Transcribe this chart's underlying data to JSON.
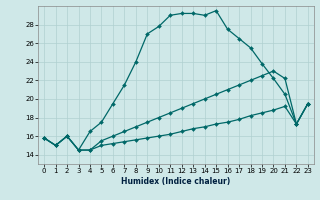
{
  "xlabel": "Humidex (Indice chaleur)",
  "xlim": [
    -0.5,
    23.5
  ],
  "ylim": [
    13.0,
    30.0
  ],
  "yticks": [
    14,
    16,
    18,
    20,
    22,
    24,
    26,
    28
  ],
  "xticks": [
    0,
    1,
    2,
    3,
    4,
    5,
    6,
    7,
    8,
    9,
    10,
    11,
    12,
    13,
    14,
    15,
    16,
    17,
    18,
    19,
    20,
    21,
    22,
    23
  ],
  "bg_color": "#cfe8e8",
  "grid_color": "#b0d0d0",
  "line_color": "#006868",
  "line1_x": [
    0,
    1,
    2,
    3,
    4,
    5,
    6,
    7,
    8,
    9,
    10,
    11,
    12,
    13,
    14,
    15,
    16,
    17,
    18,
    19,
    20,
    21,
    22,
    23
  ],
  "line1_y": [
    15.8,
    15.0,
    16.0,
    14.5,
    16.5,
    17.5,
    19.5,
    21.5,
    24.0,
    27.0,
    27.8,
    29.0,
    29.2,
    29.2,
    29.0,
    29.5,
    27.5,
    26.5,
    25.5,
    23.8,
    22.2,
    20.5,
    17.3,
    19.5
  ],
  "line2_x": [
    0,
    1,
    2,
    3,
    4,
    5,
    6,
    7,
    8,
    9,
    10,
    11,
    12,
    13,
    14,
    15,
    16,
    17,
    18,
    19,
    20,
    21,
    22,
    23
  ],
  "line2_y": [
    15.8,
    15.0,
    16.0,
    14.5,
    14.5,
    15.5,
    16.0,
    16.5,
    17.0,
    17.5,
    18.0,
    18.5,
    19.0,
    19.5,
    20.0,
    20.5,
    21.0,
    21.5,
    22.0,
    22.5,
    23.0,
    22.2,
    17.3,
    19.5
  ],
  "line3_x": [
    0,
    1,
    2,
    3,
    4,
    5,
    6,
    7,
    8,
    9,
    10,
    11,
    12,
    13,
    14,
    15,
    16,
    17,
    18,
    19,
    20,
    21,
    22,
    23
  ],
  "line3_y": [
    15.8,
    15.0,
    16.0,
    14.5,
    14.5,
    15.0,
    15.2,
    15.4,
    15.6,
    15.8,
    16.0,
    16.2,
    16.5,
    16.8,
    17.0,
    17.3,
    17.5,
    17.8,
    18.2,
    18.5,
    18.8,
    19.2,
    17.3,
    19.5
  ]
}
